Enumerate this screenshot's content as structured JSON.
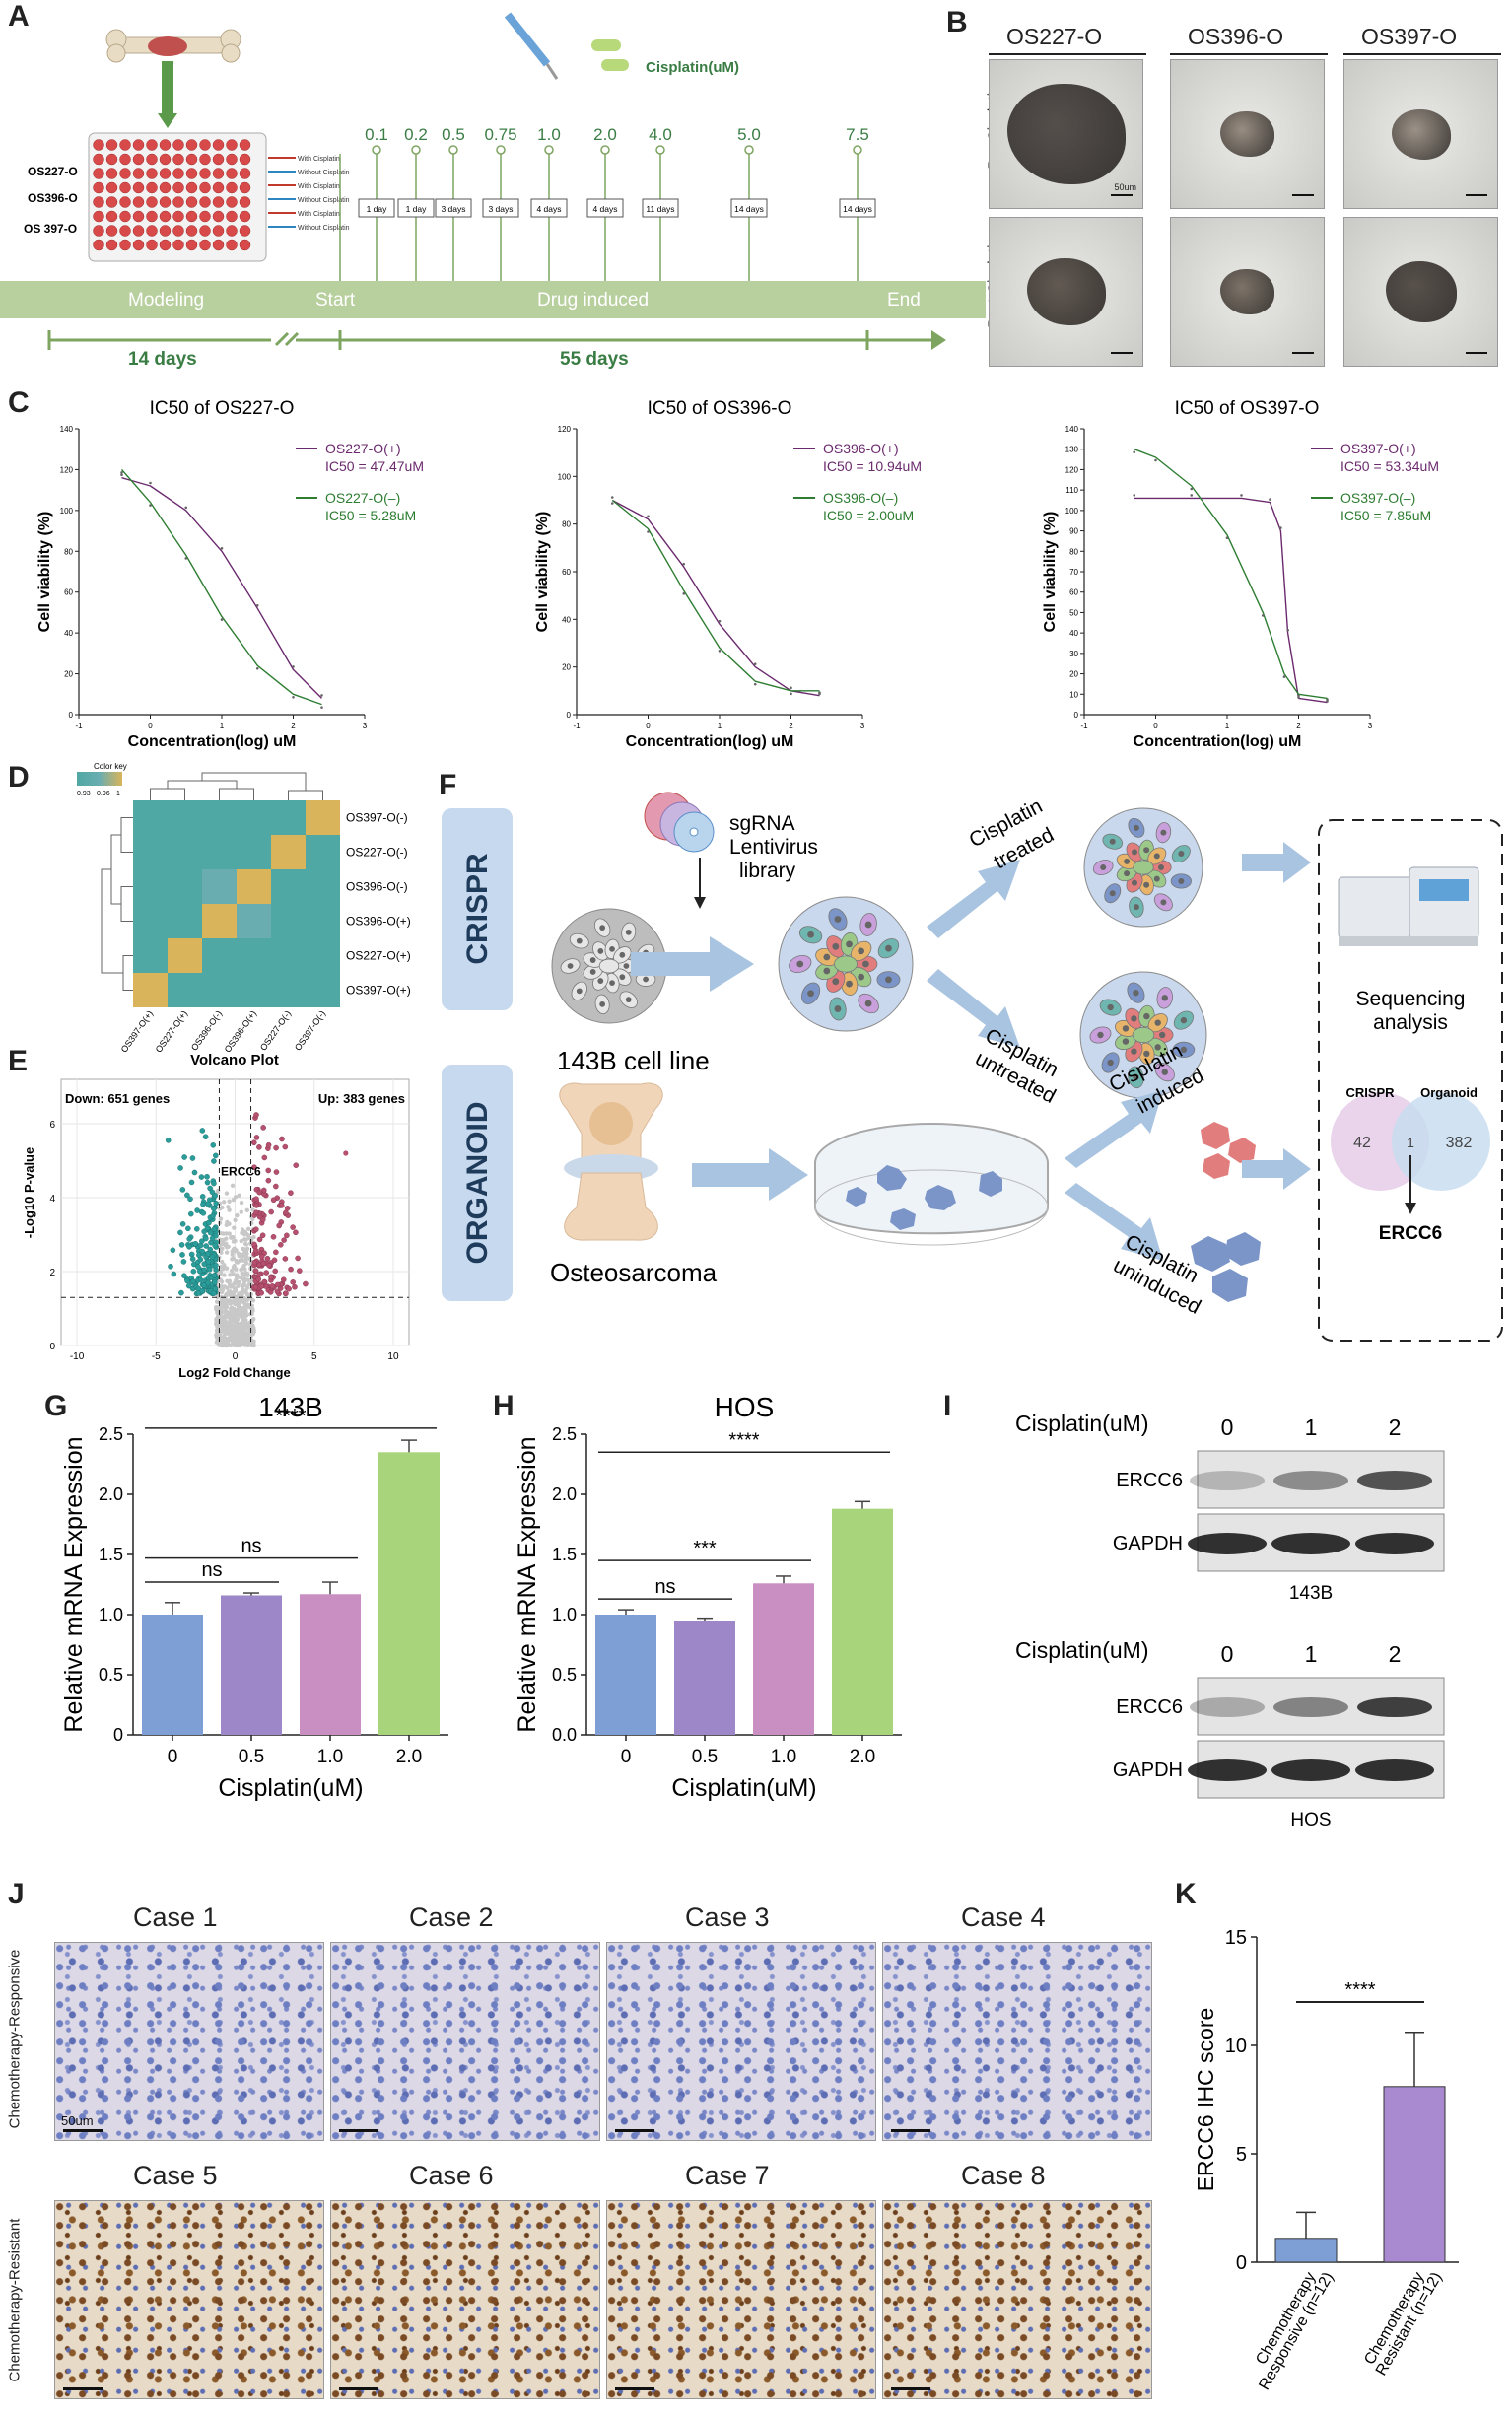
{
  "panels": {
    "A": "A",
    "B": "B",
    "C": "C",
    "D": "D",
    "E": "E",
    "F": "F",
    "G": "G",
    "H": "H",
    "I": "I",
    "J": "J",
    "K": "K"
  },
  "panelA": {
    "cisplatin_label": "Cisplatin(uM)",
    "rows": [
      "OS227-O",
      "OS396-O",
      "OS 397-O"
    ],
    "legend": [
      "With Cisplatin",
      "Without Cisplatin",
      "With Cisplatin",
      "Without Cisplatin",
      "With Cisplatin",
      "Without Cisplatin"
    ],
    "doses": [
      "0.1",
      "0.2",
      "0.5",
      "0.75",
      "1.0",
      "2.0",
      "4.0",
      "5.0",
      "7.5"
    ],
    "durations": [
      "1 day",
      "1 day",
      "3 days",
      "3 days",
      "4 days",
      "4 days",
      "11 days",
      "14 days",
      "14 days"
    ],
    "phases": [
      "Modeling",
      "Start",
      "Drug induced",
      "End"
    ],
    "spans": [
      "14 days",
      "55 days"
    ]
  },
  "panelB": {
    "columns": [
      "OS227-O",
      "OS396-O",
      "OS397-O"
    ],
    "rows": [
      "Pre-Cisplatin",
      "Post-Cisplatin"
    ],
    "scale": "50um"
  },
  "panelC": {
    "charts": [
      {
        "title": "IC50 of OS227-O",
        "ylabel": "Cell viability (%)",
        "xlabel": "Concentration(log) uM",
        "legend": [
          {
            "name": "OS227-O(+)",
            "ic50": "IC50 = 47.47uM",
            "color": "#6b2a6e"
          },
          {
            "name": "OS227-O(–)",
            "ic50": "IC50 = 5.28uM",
            "color": "#2e7d32"
          }
        ],
        "yticks": [
          "0",
          "20",
          "40",
          "60",
          "80",
          "100",
          "120",
          "140"
        ],
        "xticks": [
          "-1",
          "0",
          "1",
          "2",
          "3"
        ]
      },
      {
        "title": "IC50 of OS396-O",
        "ylabel": "Cell viability (%)",
        "xlabel": "Concentration(log) uM",
        "legend": [
          {
            "name": "OS396-O(+)",
            "ic50": "IC50 = 10.94uM",
            "color": "#6b2a6e"
          },
          {
            "name": "OS396-O(–)",
            "ic50": "IC50 = 2.00uM",
            "color": "#2e7d32"
          }
        ],
        "yticks": [
          "0",
          "20",
          "40",
          "60",
          "80",
          "100",
          "120"
        ],
        "xticks": [
          "-1",
          "0",
          "1",
          "2",
          "3"
        ]
      },
      {
        "title": "IC50 of OS397-O",
        "ylabel": "Cell viability (%)",
        "xlabel": "Concentration(log) uM",
        "legend": [
          {
            "name": "OS397-O(+)",
            "ic50": "IC50 = 53.34uM",
            "color": "#6b2a6e"
          },
          {
            "name": "OS397-O(–)",
            "ic50": "IC50 = 7.85uM",
            "color": "#2e7d32"
          }
        ],
        "yticks": [
          "0",
          "10",
          "20",
          "30",
          "40",
          "50",
          "60",
          "70",
          "80",
          "90",
          "100",
          "110",
          "120",
          "130",
          "140"
        ],
        "xticks": [
          "-1",
          "0",
          "1",
          "2",
          "3"
        ]
      }
    ]
  },
  "panelD": {
    "colorkey_title": "Color key",
    "colorkey_ticks": [
      "0.93",
      "0.96",
      "1"
    ],
    "rows": [
      "OS397-O(-)",
      "OS227-O(-)",
      "OS396-O(-)",
      "OS396-O(+)",
      "OS227-O(+)",
      "OS397-O(+)"
    ],
    "cols": [
      "OS397-O(+)",
      "OS227-O(+)",
      "OS396-O(-)",
      "OS396-O(+)",
      "OS227-O(-)",
      "OS397-O(-)"
    ],
    "colors": {
      "low": "#4fa8a3",
      "mid": "#6aadb0",
      "high": "#d9b45a"
    }
  },
  "panelE": {
    "title": "Volcano Plot",
    "down_label": "Down: 651 genes",
    "up_label": "Up: 383 genes",
    "gene": "ERCC6",
    "ylabel": "-Log10 P-value",
    "xlabel": "Log2 Fold Change",
    "xticks": [
      "-10",
      "-5",
      "0",
      "5",
      "10"
    ],
    "yticks": [
      "0",
      "2",
      "4",
      "6"
    ]
  },
  "panelF": {
    "crispr": "CRISPR",
    "organoid": "ORGANOID",
    "sgrna": [
      "sgRNA",
      "Lentivirus",
      "library"
    ],
    "cell_line": "143B cell line",
    "treated": [
      "Cisplatin",
      "treated"
    ],
    "untreated": [
      "Cisplatin",
      "untreated"
    ],
    "induced": [
      "Cisplatin",
      "induced"
    ],
    "uninduced": [
      "Cisplatin",
      "uninduced"
    ],
    "osteosarcoma": "Osteosarcoma",
    "sequencing": [
      "Sequencing",
      "analysis"
    ],
    "venn": {
      "left": "CRISPR",
      "right": "Organoid",
      "left_only": "42",
      "overlap": "1",
      "right_only": "382"
    },
    "result": "ERCC6"
  },
  "panelG": {
    "title": "143B",
    "ylabel": "Relative mRNA Expression",
    "xlabel": "Cisplatin(uM)",
    "categories": [
      "0",
      "0.5",
      "1.0",
      "2.0"
    ],
    "yticks": [
      "0",
      "0.5",
      "1.0",
      "1.5",
      "2.0",
      "2.5"
    ],
    "sig": [
      "****",
      "ns",
      "ns"
    ]
  },
  "panelH": {
    "title": "HOS",
    "ylabel": "Relative mRNA Expression",
    "xlabel": "Cisplatin(uM)",
    "categories": [
      "0",
      "0.5",
      "1.0",
      "2.0"
    ],
    "yticks": [
      "0.0",
      "0.5",
      "1.0",
      "1.5",
      "2.0",
      "2.5"
    ],
    "sig": [
      "****",
      "***",
      "ns"
    ]
  },
  "panelI": {
    "blots": [
      {
        "header": "Cisplatin(uM)",
        "doses": [
          "0",
          "1",
          "2"
        ],
        "bands": [
          "ERCC6",
          "GAPDH"
        ],
        "cell": "143B"
      },
      {
        "header": "Cisplatin(uM)",
        "doses": [
          "0",
          "1",
          "2"
        ],
        "bands": [
          "ERCC6",
          "GAPDH"
        ],
        "cell": "HOS"
      }
    ]
  },
  "panelJ": {
    "cases": [
      "Case 1",
      "Case 2",
      "Case 3",
      "Case 4",
      "Case 5",
      "Case 6",
      "Case 7",
      "Case 8"
    ],
    "rows": [
      "Chemotherapy-Responsive",
      "Chemotherapy-Resistant"
    ],
    "scale": "50um"
  },
  "panelK": {
    "ylabel": "ERCC6 IHC score",
    "yticks": [
      "0",
      "5",
      "10",
      "15"
    ],
    "categories": [
      "Chemotherapy Responsive (n=12)",
      "Chemotherapy Resistant (n=12)"
    ],
    "sig": "****"
  },
  "chart_data": [
    {
      "type": "line",
      "title": "IC50 of OS227-O",
      "xlabel": "Concentration(log) uM",
      "ylabel": "Cell viability (%)",
      "xlim": [
        -1,
        3
      ],
      "ylim": [
        0,
        140
      ],
      "series": [
        {
          "name": "OS227-O(+)",
          "ic50_uM": 47.47,
          "x": [
            -0.4,
            0,
            0.5,
            1,
            1.5,
            2,
            2.4
          ],
          "values": [
            116,
            112,
            100,
            80,
            52,
            22,
            8
          ]
        },
        {
          "name": "OS227-O(–)",
          "ic50_uM": 5.28,
          "x": [
            -0.4,
            0,
            0.5,
            1,
            1.5,
            2,
            2.4
          ],
          "values": [
            120,
            104,
            78,
            48,
            24,
            10,
            5
          ]
        }
      ]
    },
    {
      "type": "line",
      "title": "IC50 of OS396-O",
      "xlabel": "Concentration(log) uM",
      "ylabel": "Cell viability (%)",
      "xlim": [
        -1,
        3
      ],
      "ylim": [
        0,
        120
      ],
      "series": [
        {
          "name": "OS396-O(+)",
          "ic50_uM": 10.94,
          "x": [
            -0.5,
            0,
            0.5,
            1,
            1.5,
            2,
            2.4
          ],
          "values": [
            90,
            82,
            62,
            38,
            20,
            10,
            8
          ]
        },
        {
          "name": "OS396-O(–)",
          "ic50_uM": 2.0,
          "x": [
            -0.5,
            0,
            0.5,
            1,
            1.5,
            2,
            2.4
          ],
          "values": [
            90,
            78,
            52,
            28,
            14,
            10,
            10
          ]
        }
      ]
    },
    {
      "type": "line",
      "title": "IC50 of OS397-O",
      "xlabel": "Concentration(log) uM",
      "ylabel": "Cell viability (%)",
      "xlim": [
        -1,
        3
      ],
      "ylim": [
        0,
        140
      ],
      "series": [
        {
          "name": "OS397-O(+)",
          "ic50_uM": 53.34,
          "x": [
            -0.3,
            0.5,
            1.2,
            1.6,
            1.75,
            1.85,
            2.0,
            2.4
          ],
          "values": [
            106,
            106,
            106,
            104,
            90,
            40,
            8,
            6
          ]
        },
        {
          "name": "OS397-O(–)",
          "ic50_uM": 7.85,
          "x": [
            -0.3,
            0,
            0.5,
            1,
            1.5,
            1.8,
            2.0,
            2.4
          ],
          "values": [
            130,
            126,
            112,
            88,
            50,
            20,
            10,
            8
          ]
        }
      ]
    },
    {
      "type": "heatmap",
      "title": "",
      "rows": [
        "OS397-O(-)",
        "OS227-O(-)",
        "OS396-O(-)",
        "OS396-O(+)",
        "OS227-O(+)",
        "OS397-O(+)"
      ],
      "cols": [
        "OS397-O(+)",
        "OS227-O(+)",
        "OS396-O(-)",
        "OS396-O(+)",
        "OS227-O(-)",
        "OS397-O(-)"
      ],
      "values": [
        [
          0.94,
          0.94,
          0.95,
          0.94,
          0.95,
          1
        ],
        [
          0.94,
          0.95,
          0.95,
          0.94,
          1,
          0.95
        ],
        [
          0.94,
          0.95,
          0.96,
          1,
          0.94,
          0.94
        ],
        [
          0.94,
          0.95,
          1,
          0.96,
          0.95,
          0.95
        ],
        [
          0.95,
          1,
          0.95,
          0.95,
          0.95,
          0.94
        ],
        [
          1,
          0.95,
          0.94,
          0.94,
          0.94,
          0.94
        ]
      ]
    },
    {
      "type": "bar",
      "title": "143B",
      "categories": [
        "0",
        "0.5",
        "1.0",
        "2.0"
      ],
      "values": [
        1.0,
        1.16,
        1.17,
        2.35
      ],
      "errors": [
        0.1,
        0.02,
        0.1,
        0.1
      ],
      "xlabel": "Cisplatin(uM)",
      "ylabel": "Relative mRNA Expression",
      "ylim": [
        0,
        2.5
      ]
    },
    {
      "type": "bar",
      "title": "HOS",
      "categories": [
        "0",
        "0.5",
        "1.0",
        "2.0"
      ],
      "values": [
        1.0,
        0.95,
        1.26,
        1.88
      ],
      "errors": [
        0.04,
        0.02,
        0.06,
        0.06
      ],
      "xlabel": "Cisplatin(uM)",
      "ylabel": "Relative mRNA Expression",
      "ylim": [
        0,
        2.5
      ]
    },
    {
      "type": "bar",
      "title": "",
      "categories": [
        "Chemotherapy Responsive (n=12)",
        "Chemotherapy Resistant (n=12)"
      ],
      "values": [
        1.1,
        8.1
      ],
      "errors": [
        1.2,
        2.5
      ],
      "ylabel": "ERCC6 IHC score",
      "ylim": [
        0,
        15
      ]
    }
  ]
}
